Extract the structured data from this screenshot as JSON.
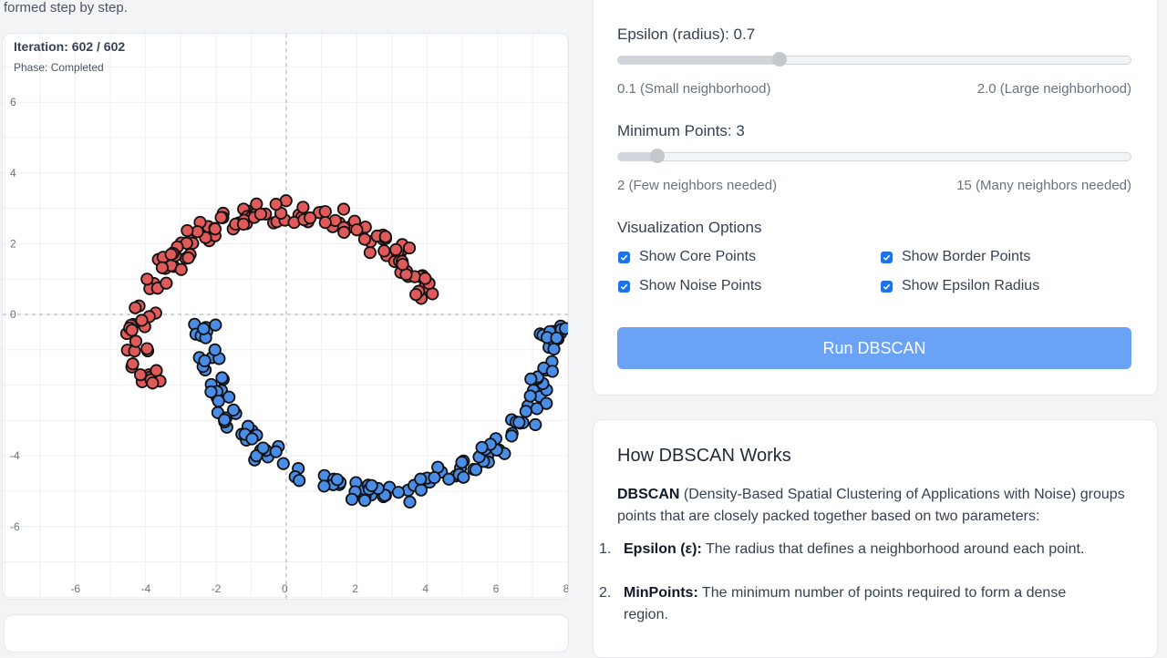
{
  "intro": {
    "text": "formed step by step."
  },
  "plot": {
    "iteration": "Iteration: 602 / 602",
    "phase": "Phase: Completed",
    "x_ticks": [
      "-6",
      "-4",
      "-2",
      "0",
      "2",
      "4",
      "6",
      "8"
    ],
    "y_ticks": [
      "6",
      "4",
      "2",
      "0",
      "-4",
      "-6"
    ],
    "colors": {
      "cluster_red": "#e05a5a",
      "cluster_blue": "#4a8de6",
      "outline": "#111111"
    }
  },
  "params": {
    "epsilon": {
      "label": "Epsilon (radius): 0.7",
      "min_label": "0.1 (Small neighborhood)",
      "max_label": "2.0 (Large neighborhood)",
      "value": 0.7,
      "min": 0.1,
      "max": 2.0
    },
    "min_points": {
      "label": "Minimum Points: 3",
      "min_label": "2 (Few neighbors needed)",
      "max_label": "15 (Many neighbors needed)",
      "value": 3,
      "min": 2,
      "max": 15
    },
    "viz": {
      "title": "Visualization Options",
      "show_core": "Show Core Points",
      "show_border": "Show Border Points",
      "show_noise": "Show Noise Points",
      "show_epsilon": "Show Epsilon Radius"
    },
    "run_label": "Run DBSCAN",
    "accent": "#6aa3f6"
  },
  "info": {
    "title": "How DBSCAN Works",
    "intro_bold": "DBSCAN",
    "intro_rest": " (Density-Based Spatial Clustering of Applications with Noise) groups points that are closely packed together based on two parameters:",
    "item1_num": "1.",
    "item1_bold": "Epsilon (ε):",
    "item1_rest": " The radius that defines a neighborhood around each point.",
    "item2_num": "2.",
    "item2_bold": "MinPoints:",
    "item2_rest": " The minimum number of points required to form a dense region."
  }
}
